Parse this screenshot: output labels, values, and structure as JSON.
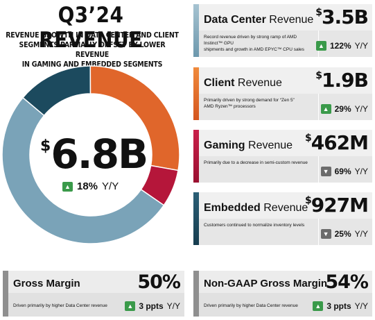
{
  "header": {
    "title": "Q3’24 REVENUE",
    "subtitle_lines": [
      "REVENUE GROWTH IN DATA CENTER AND CLIENT",
      "SEGMENTS PARTIALLY OFFSET BY LOWER REVENUE",
      "IN GAMING AND EMBEDDED SEGMENTS"
    ]
  },
  "total": {
    "currency": "$",
    "amount": "6.8B",
    "change_pct": "18%",
    "change_label": "Y/Y",
    "direction": "up"
  },
  "colors": {
    "data_center": "#7aa3b8",
    "client": "#e0662b",
    "gaming": "#b5163a",
    "embedded": "#1c4a5e",
    "up": "#3a9a4a",
    "down": "#6b6b6b",
    "neutral": "#8f8f8f"
  },
  "segments": [
    {
      "key": "data_center",
      "name_bold": "Data Center",
      "name_rest": " Revenue",
      "currency": "$",
      "value": "3.5B",
      "share": 0.515,
      "desc_lines": [
        "Record revenue driven by strong ramp of AMD Instinct™ GPU",
        "shipments and growth in AMD EPYC™ CPU sales"
      ],
      "change_pct": "122%",
      "change_label": "Y/Y",
      "direction": "up"
    },
    {
      "key": "client",
      "name_bold": "Client",
      "name_rest": " Revenue",
      "currency": "$",
      "value": "1.9B",
      "share": 0.279,
      "desc_lines": [
        "Primarily driven by strong demand for “Zen 5”",
        "AMD Ryzen™ processors"
      ],
      "change_pct": "29%",
      "change_label": "Y/Y",
      "direction": "up"
    },
    {
      "key": "gaming",
      "name_bold": "Gaming",
      "name_rest": " Revenue",
      "currency": "$",
      "value": "462M",
      "share": 0.068,
      "desc_lines": [
        "Primarily due to a decrease in semi-custom revenue"
      ],
      "change_pct": "69%",
      "change_label": "Y/Y",
      "direction": "down"
    },
    {
      "key": "embedded",
      "name_bold": "Embedded",
      "name_rest": " Revenue",
      "currency": "$",
      "value": "927M",
      "share": 0.138,
      "desc_lines": [
        "Customers continued to normalize inventory levels"
      ],
      "change_pct": "25%",
      "change_label": "Y/Y",
      "direction": "down"
    }
  ],
  "margins": [
    {
      "name": "Gross Margin",
      "value": "50%",
      "desc": "Driven primarily by higher Data Center revenue",
      "change": "3 ppts",
      "change_label": "Y/Y",
      "direction": "up"
    },
    {
      "name": "Non-GAAP Gross Margin",
      "value": "54%",
      "desc": "Driven primarily by higher Data Center revenue",
      "change": "3 ppts",
      "change_label": "Y/Y",
      "direction": "up"
    }
  ]
}
